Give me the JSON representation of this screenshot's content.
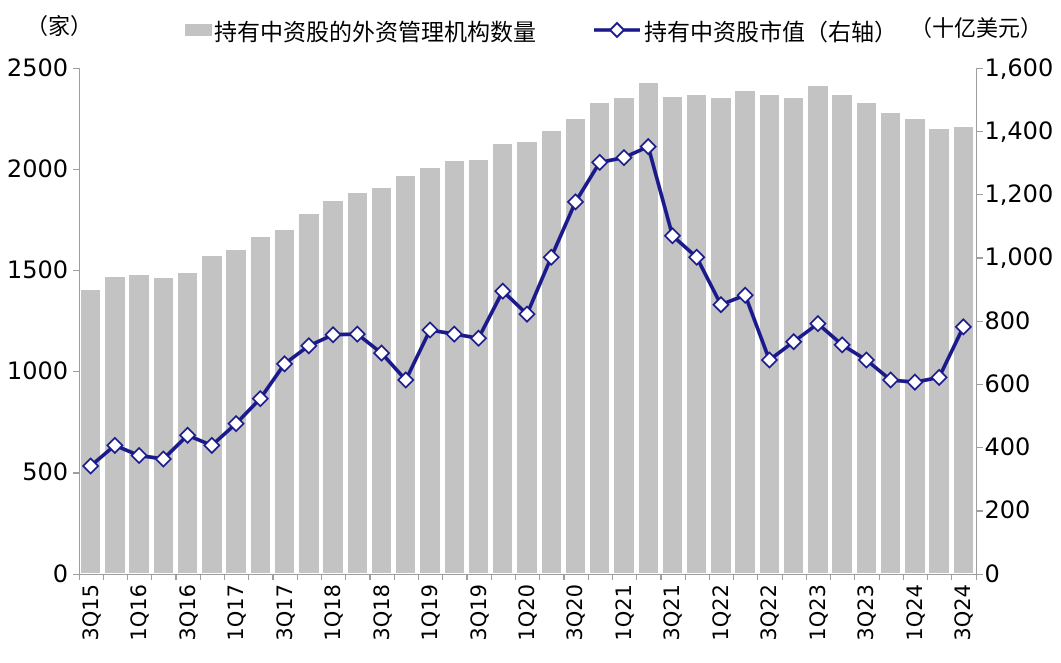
{
  "header": {
    "left_axis_unit": "（家）",
    "right_axis_unit": "（十亿美元）",
    "legend": [
      {
        "label": "持有中资股的外资管理机构数量",
        "marker": "bar-swatch",
        "color": "#c3c3c3"
      },
      {
        "label": "持有中资股市值（右轴）",
        "marker": "diamond-line",
        "color": "#1a1a8c"
      }
    ]
  },
  "colors": {
    "bar": "#c3c3c3",
    "line": "#1a1a8c",
    "diamond_fill": "#ffffff",
    "axis": "#9e9e9e",
    "text": "#000000"
  },
  "chart_data": {
    "type": "bar",
    "subtype": "bar+line-dual-axis",
    "title": "",
    "categories": [
      "3Q15",
      "4Q15",
      "1Q16",
      "2Q16",
      "3Q16",
      "4Q16",
      "1Q17",
      "2Q17",
      "3Q17",
      "4Q17",
      "1Q18",
      "2Q18",
      "3Q18",
      "4Q18",
      "1Q19",
      "2Q19",
      "3Q19",
      "4Q19",
      "1Q20",
      "2Q20",
      "3Q20",
      "4Q20",
      "1Q21",
      "2Q21",
      "3Q21",
      "4Q21",
      "1Q22",
      "2Q22",
      "3Q22",
      "4Q22",
      "1Q23",
      "2Q23",
      "3Q23",
      "4Q23",
      "1Q24",
      "2Q24",
      "3Q24"
    ],
    "x_tick_labels": [
      "3Q15",
      "1Q16",
      "3Q16",
      "1Q17",
      "3Q17",
      "1Q18",
      "3Q18",
      "1Q19",
      "3Q19",
      "1Q20",
      "3Q20",
      "1Q21",
      "3Q21",
      "1Q22",
      "3Q22",
      "1Q23",
      "3Q23",
      "1Q24",
      "3Q24"
    ],
    "label_every": 2,
    "series": [
      {
        "name": "持有中资股的外资管理机构数量",
        "type": "bar",
        "axis": "left",
        "unit": "家",
        "values": [
          1400,
          1465,
          1475,
          1460,
          1485,
          1570,
          1600,
          1665,
          1695,
          1775,
          1840,
          1880,
          1905,
          1965,
          2005,
          2040,
          2045,
          2120,
          2130,
          2185,
          2245,
          2325,
          2350,
          2425,
          2355,
          2365,
          2350,
          2385,
          2365,
          2350,
          2410,
          2365,
          2325,
          2275,
          2245,
          2195,
          2205
        ]
      },
      {
        "name": "持有中资股市值（右轴）",
        "type": "line",
        "axis": "right",
        "unit": "十亿美元",
        "marker": "diamond",
        "values": [
          340,
          405,
          373,
          362,
          437,
          405,
          474,
          553,
          663,
          720,
          755,
          757,
          697,
          612,
          770,
          757,
          744,
          893,
          820,
          1000,
          1175,
          1300,
          1315,
          1350,
          1068,
          1000,
          850,
          880,
          675,
          733,
          790,
          723,
          675,
          612,
          605,
          620,
          780
        ]
      }
    ],
    "left_axis": {
      "min": 0,
      "max": 2500,
      "step": 500,
      "tick_labels": [
        "0",
        "500",
        "1000",
        "1500",
        "2000",
        "2500"
      ]
    },
    "right_axis": {
      "min": 0,
      "max": 1600,
      "step": 200,
      "tick_labels": [
        "0",
        "200",
        "400",
        "600",
        "800",
        "1,000",
        "1,200",
        "1,400",
        "1,600"
      ]
    },
    "grid": false,
    "legend_position": "top"
  }
}
